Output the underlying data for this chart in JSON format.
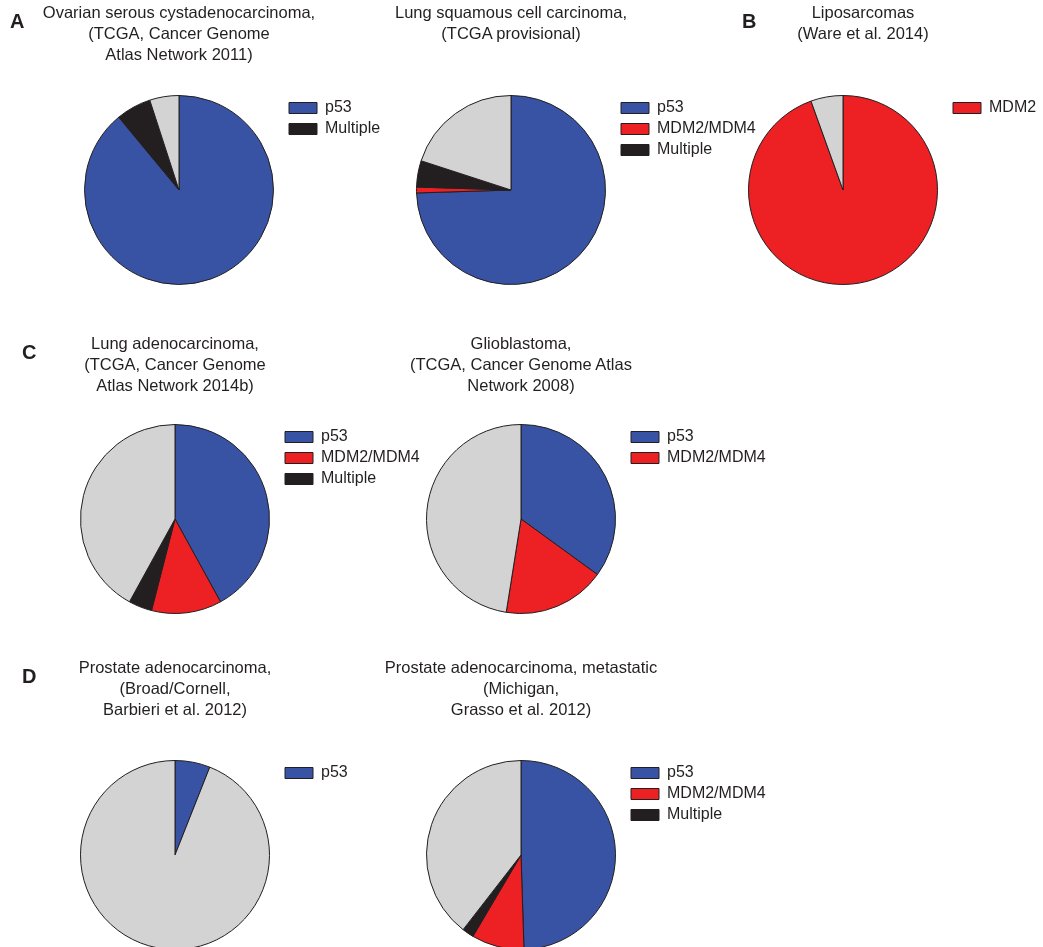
{
  "chart_data": [
    {
      "type": "pie",
      "title": "Ovarian serous cystadenocarcinoma,\n(TCGA, Cancer Genome\nAtlas Network 2011)",
      "categories": [
        "p53",
        "Multiple",
        null
      ],
      "values": [
        89,
        6,
        5
      ],
      "colors": [
        "#3953a4",
        "#231f20",
        "#d3d3d3"
      ],
      "legend": "top right",
      "annotations": [
        "A"
      ]
    },
    {
      "type": "pie",
      "title": "Lung squamous cell carcinoma,\n(TCGA provisional)",
      "categories": [
        "p53",
        "MDM2/MDM4",
        "Multiple",
        null
      ],
      "values": [
        74.5,
        1,
        4.5,
        20
      ],
      "colors": [
        "#3953a4",
        "#ed2024",
        "#231f20",
        "#d3d3d3"
      ],
      "legend": "top right"
    },
    {
      "type": "pie",
      "title": "Liposarcomas\n(Ware et al. 2014)",
      "categories": [
        "MDM2",
        null
      ],
      "values": [
        94.5,
        5.5
      ],
      "colors": [
        "#ed2024",
        "#d3d3d3"
      ],
      "legend": "top right",
      "annotations": [
        "B"
      ]
    },
    {
      "type": "pie",
      "title": "Lung adenocarcinoma,\n(TCGA, Cancer Genome\nAtlas Network 2014b)",
      "categories": [
        "p53",
        "MDM2/MDM4",
        "Multiple",
        null
      ],
      "values": [
        42,
        12,
        4,
        42
      ],
      "colors": [
        "#3953a4",
        "#ed2024",
        "#231f20",
        "#d3d3d3"
      ],
      "legend": "top right",
      "annotations": [
        "C"
      ]
    },
    {
      "type": "pie",
      "title": "Glioblastoma,\n(TCGA, Cancer Genome Atlas\nNetwork 2008)",
      "categories": [
        "p53",
        "MDM2/MDM4",
        null
      ],
      "values": [
        35,
        17.5,
        47.5
      ],
      "colors": [
        "#3953a4",
        "#ed2024",
        "#d3d3d3"
      ],
      "legend": "top right"
    },
    {
      "type": "pie",
      "title": "Prostate adenocarcinoma,\n(Broad/Cornell,\nBarbieri et al. 2012)",
      "categories": [
        "p53",
        null
      ],
      "values": [
        6,
        94
      ],
      "colors": [
        "#3953a4",
        "#d3d3d3"
      ],
      "legend": "top right",
      "annotations": [
        "D"
      ]
    },
    {
      "type": "pie",
      "title": "Prostate adenocarcinoma, metastatic\n(Michigan,\nGrasso et al. 2012)",
      "categories": [
        "p53",
        "MDM2/MDM4",
        "Multiple",
        null
      ],
      "values": [
        49.5,
        9,
        2,
        39.5
      ],
      "colors": [
        "#3953a4",
        "#ed2024",
        "#231f20",
        "#d3d3d3"
      ],
      "legend": "top right"
    }
  ]
}
